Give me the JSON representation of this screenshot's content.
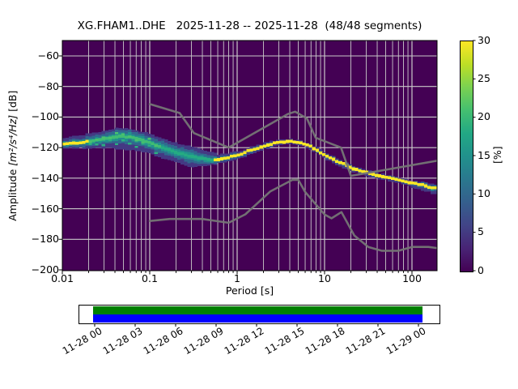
{
  "title": "XG.FHAM1..DHE   2025-11-28 -- 2025-11-28  (48/48 segments)",
  "chart_data": {
    "type": "heatmap",
    "description": "Probabilistic power spectral density (PPSD) histogram with Peterson new high/low noise model reference curves and a data-coverage timeline",
    "xlabel": "Period [s]",
    "ylabel_prefix": "Amplitude ",
    "ylabel_math": "[m²/s⁴/Hz]",
    "ylabel_suffix": " [dB]",
    "x_scale": "log",
    "xlim": [
      0.01,
      194
    ],
    "ylim": [
      -200,
      -50
    ],
    "grid": true,
    "x_tick_labels": [
      "0.01",
      "0.1",
      "1",
      "10",
      "100"
    ],
    "x_tick_values": [
      0.01,
      0.1,
      1,
      10,
      100
    ],
    "y_tick_labels": [
      "−60",
      "−80",
      "−100",
      "−120",
      "−140",
      "−160",
      "−180",
      "−200"
    ],
    "y_tick_values": [
      -60,
      -80,
      -100,
      -120,
      -140,
      -160,
      -180,
      -200
    ],
    "colorbar": {
      "label": "[%]",
      "min": 0,
      "max": 30,
      "tick_labels": [
        "0",
        "5",
        "10",
        "15",
        "20",
        "25",
        "30"
      ],
      "tick_values": [
        0,
        5,
        10,
        15,
        20,
        25,
        30
      ],
      "colormap": "viridis"
    },
    "psd_band": {
      "comment": "PPSD probability band: mode of distribution plus visible top/bottom envelope, in dB rel. 1 (m^2/s^4)/Hz",
      "periods": [
        0.01,
        0.014,
        0.02,
        0.03,
        0.045,
        0.06,
        0.08,
        0.1,
        0.14,
        0.2,
        0.3,
        0.45,
        0.6,
        0.8,
        1.0,
        1.3,
        1.7,
        2.2,
        3.0,
        4.0,
        5.0,
        6.5,
        8.0,
        10.0,
        13.0,
        17.0,
        22.0,
        30.0,
        42.0,
        60.0,
        85.0,
        120,
        160,
        190
      ],
      "mode_db": [
        -117.5,
        -117,
        -116,
        -114,
        -112.5,
        -113,
        -115,
        -117,
        -120,
        -123,
        -126,
        -127.5,
        -128,
        -126.5,
        -125,
        -122.5,
        -120.5,
        -118.5,
        -116.5,
        -115.8,
        -116.5,
        -118.5,
        -121.5,
        -125,
        -128,
        -131,
        -134,
        -136.3,
        -138.3,
        -140.2,
        -142.2,
        -144,
        -145.8,
        -146.5
      ],
      "top_db": [
        -114,
        -112.5,
        -111,
        -109,
        -107,
        -107.5,
        -109.5,
        -111,
        -114,
        -117,
        -119.5,
        -122,
        -124.5,
        -123.5,
        -122.5,
        -120.5,
        -118.5,
        -116.5,
        -115,
        -114.3,
        -115,
        -117,
        -119.5,
        -123,
        -126.5,
        -129.5,
        -132.2,
        -134.8,
        -136.8,
        -138.7,
        -140.7,
        -142.4,
        -143.4,
        -143.8
      ],
      "bottom_db": [
        -120.5,
        -120.5,
        -120.5,
        -120.5,
        -121,
        -121.5,
        -122.5,
        -124,
        -127,
        -130,
        -132.5,
        -131.5,
        -130.5,
        -129,
        -127.5,
        -125.5,
        -122.5,
        -120.5,
        -118.3,
        -117.5,
        -118.2,
        -120.5,
        -123.5,
        -127.5,
        -130.5,
        -133.8,
        -136.3,
        -138.3,
        -140.3,
        -142.3,
        -144.7,
        -147,
        -149.5,
        -150.5
      ]
    },
    "noise_models": {
      "nhnm": [
        [
          0.1,
          -91.5
        ],
        [
          0.22,
          -97.4
        ],
        [
          0.32,
          -110.5
        ],
        [
          0.8,
          -120
        ],
        [
          3.8,
          -98
        ],
        [
          4.6,
          -96.5
        ],
        [
          6.3,
          -101
        ],
        [
          7.9,
          -113.5
        ],
        [
          15.4,
          -120
        ],
        [
          20,
          -138.5
        ],
        [
          190,
          -128.7
        ]
      ],
      "nlnm": [
        [
          0.1,
          -168
        ],
        [
          0.17,
          -166.7
        ],
        [
          0.4,
          -166.7
        ],
        [
          0.8,
          -169.2
        ],
        [
          1.24,
          -163.7
        ],
        [
          2.4,
          -148.6
        ],
        [
          4.3,
          -141.1
        ],
        [
          5,
          -141.1
        ],
        [
          6,
          -149
        ],
        [
          10,
          -163.8
        ],
        [
          12,
          -166.3
        ],
        [
          15.6,
          -162.2
        ],
        [
          21.9,
          -177.5
        ],
        [
          31.6,
          -185
        ],
        [
          45,
          -187.5
        ],
        [
          70,
          -187.5
        ],
        [
          101,
          -185
        ],
        [
          154,
          -185
        ],
        [
          190,
          -185.7
        ]
      ]
    },
    "colors": {
      "background": "#440154",
      "grid": "#c9c9c9",
      "noise_model": "#757575",
      "band_outer": "#443983",
      "band_mid": "#31688e",
      "band_inner": "#21918c",
      "core_yellow": "#fde725",
      "core_green": "#3fbc73",
      "core_teal": "#25ab82",
      "speckle_a": "#4ac16d",
      "speckle_b": "#2ab07f",
      "timeline_green": "#008000",
      "timeline_blue": "#0000ff"
    },
    "timeline": {
      "tick_labels": [
        "11-28 00",
        "11-28 03",
        "11-28 06",
        "11-28 09",
        "11-28 12",
        "11-28 15",
        "11-28 18",
        "11-28 21",
        "11-29 00"
      ]
    }
  }
}
